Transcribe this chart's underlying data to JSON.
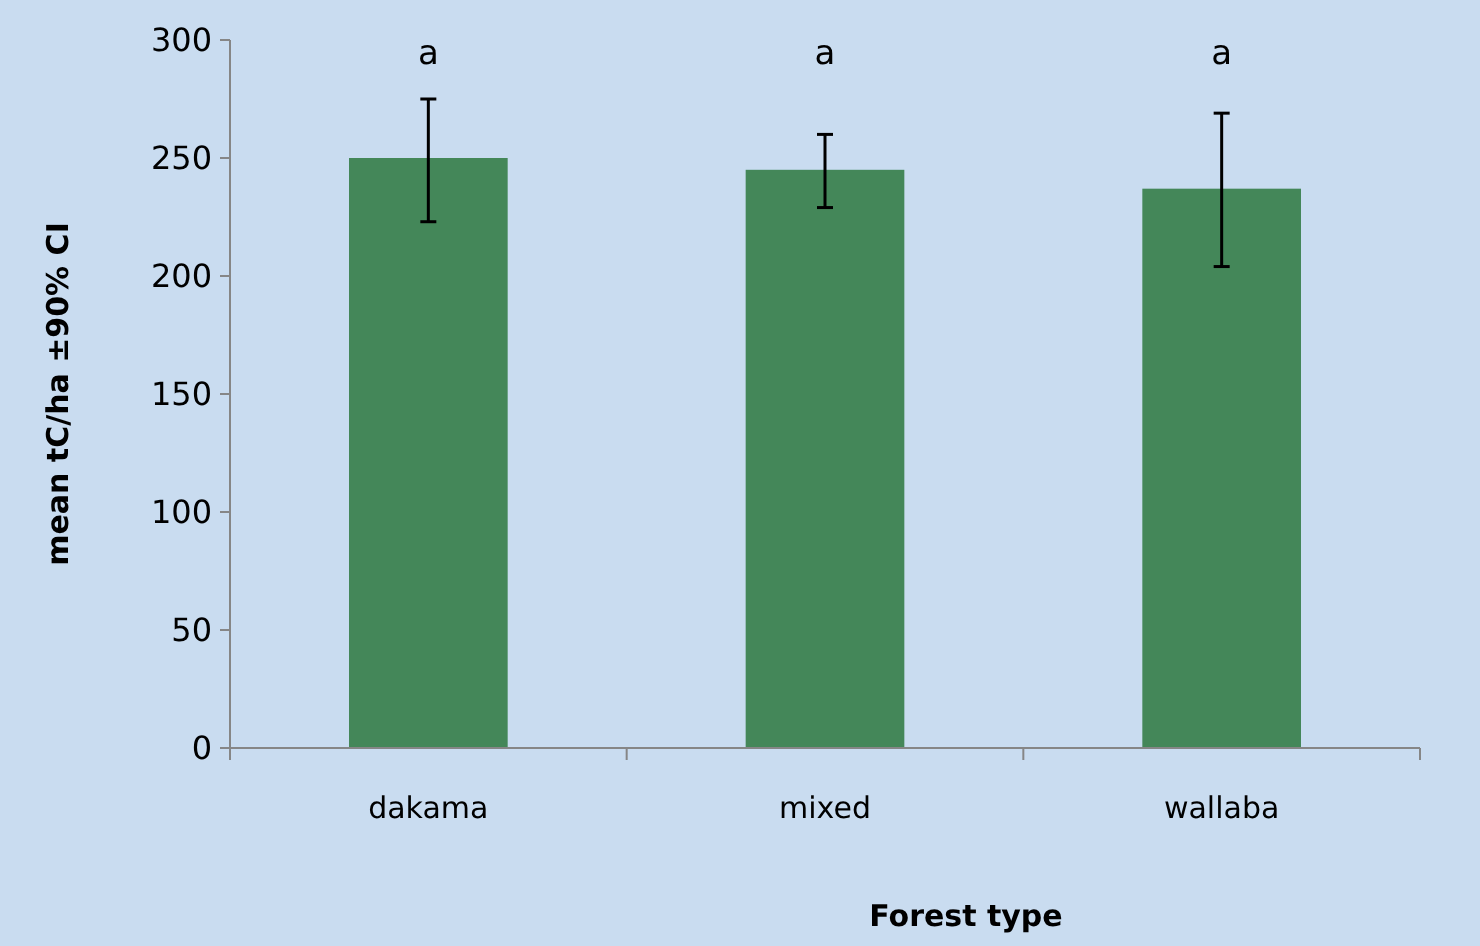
{
  "chart_data": {
    "type": "bar",
    "xlabel": "Forest type",
    "ylabel": "mean tC/ha ±90% CI",
    "categories": [
      "dakama",
      "mixed",
      "wallaba"
    ],
    "values": [
      250,
      245,
      237
    ],
    "errors": [
      [
        223,
        275
      ],
      [
        229,
        260
      ],
      [
        204,
        269
      ]
    ],
    "color": "#448759",
    "ylim": [
      0,
      300
    ],
    "yticks": [
      0,
      50,
      100,
      150,
      200,
      250,
      300
    ],
    "grid": false,
    "annotations": [
      "a",
      "a",
      "a"
    ]
  }
}
